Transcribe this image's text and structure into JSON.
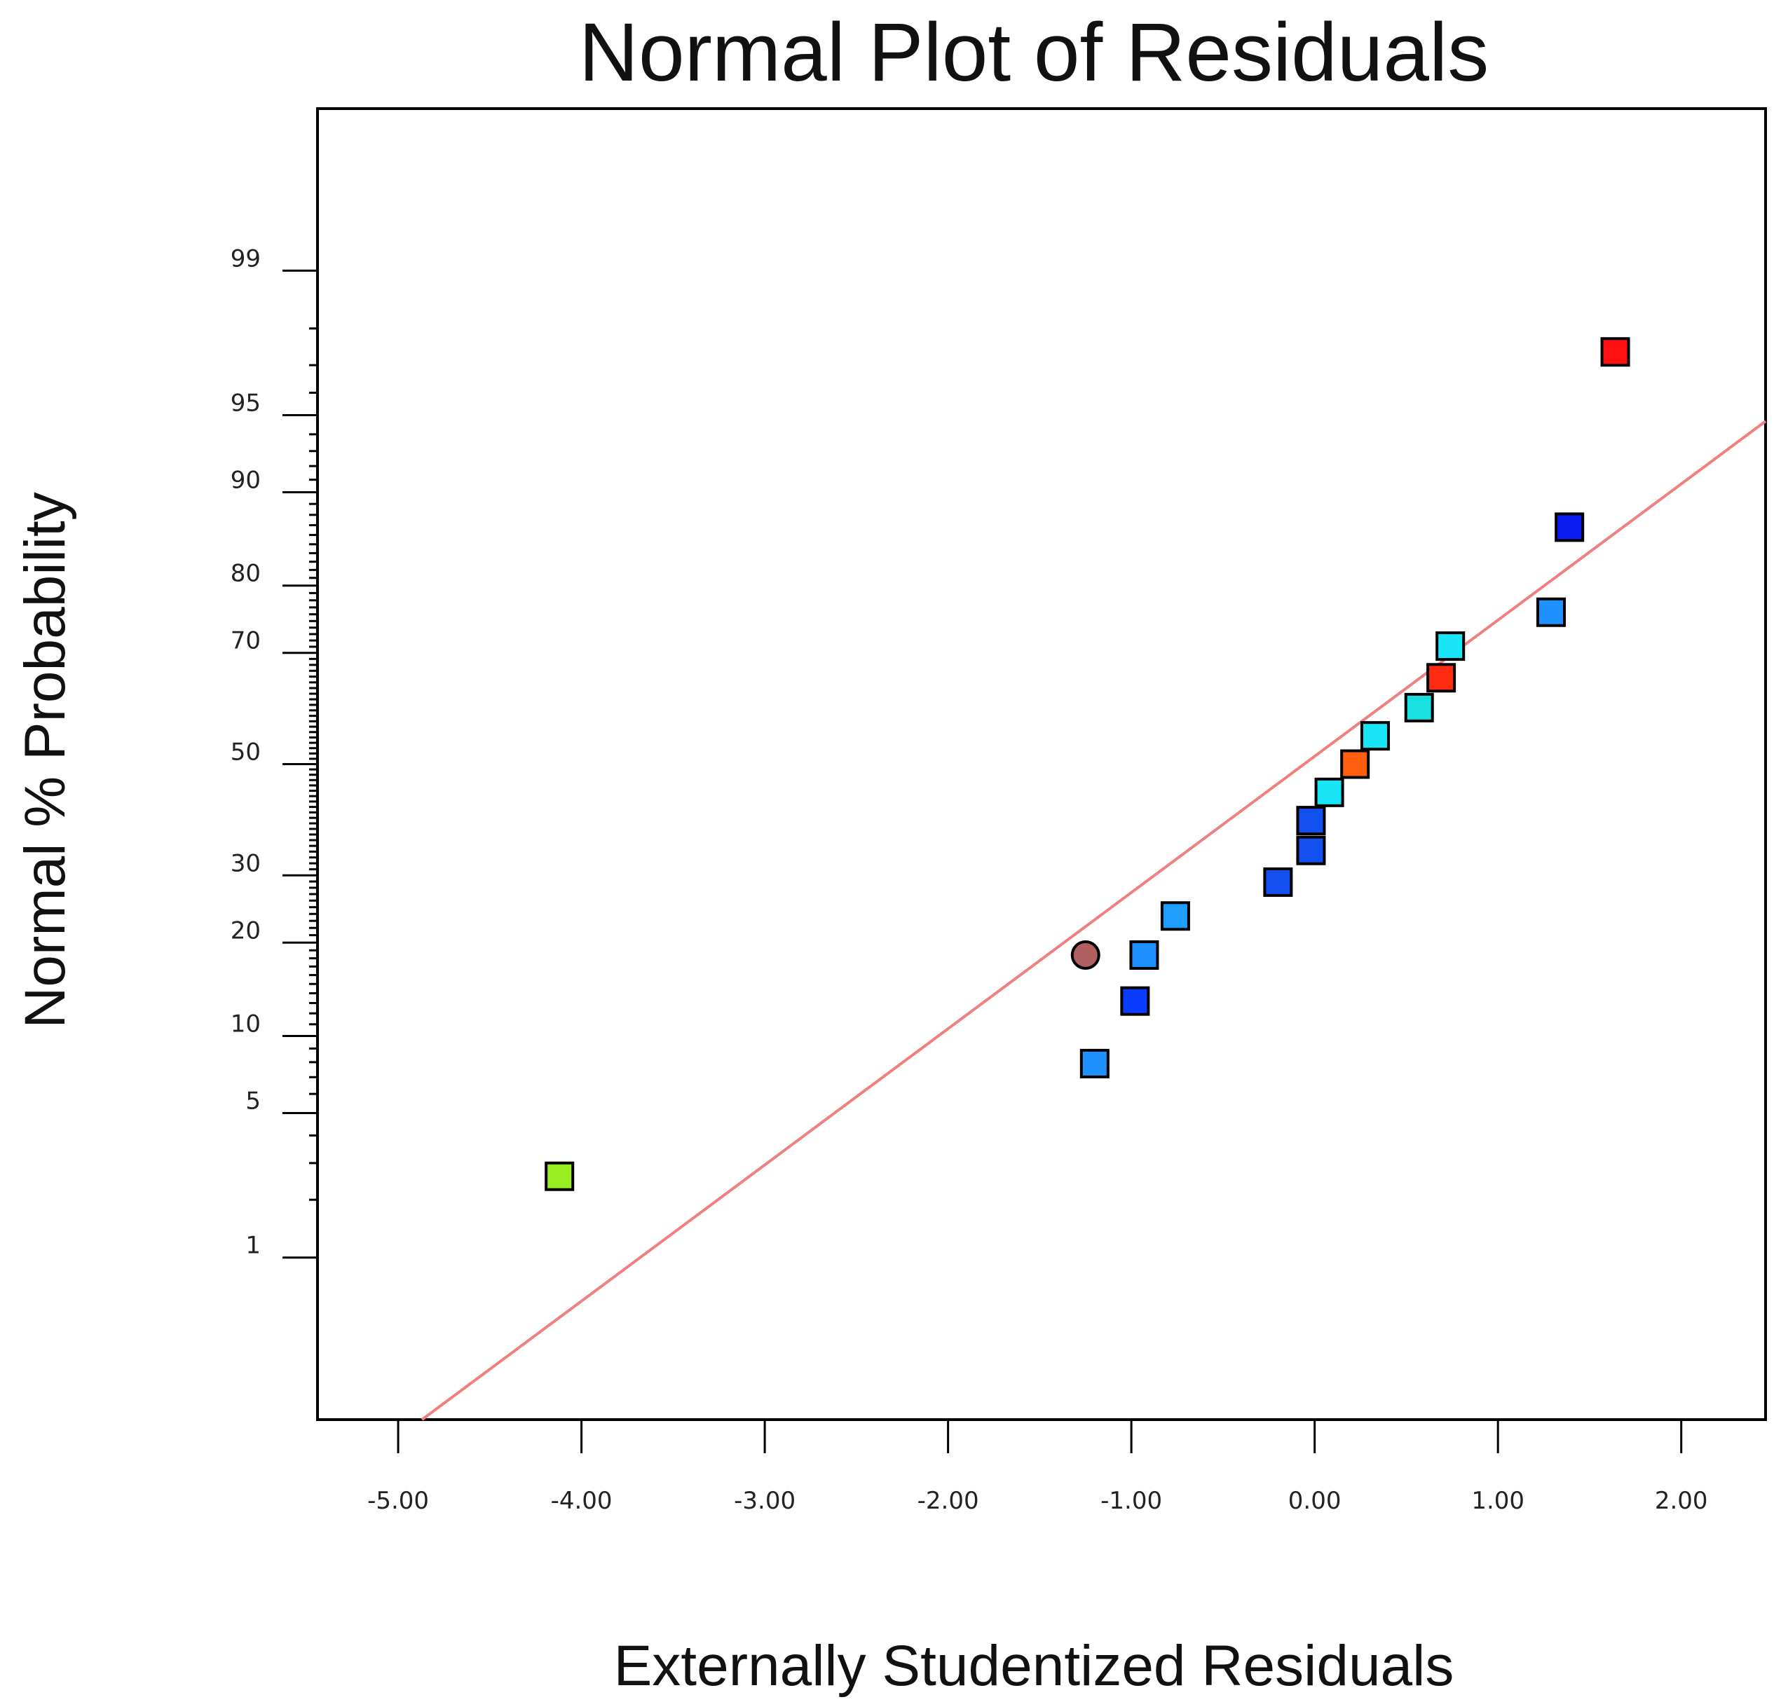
{
  "chart_data": {
    "type": "scatter",
    "title": "Normal Plot of Residuals",
    "xlabel": "Externally Studentized Residuals",
    "ylabel": "Normal % Probability",
    "xlim": [
      -5.44,
      2.46
    ],
    "ylim_probability": [
      0.1,
      99.9
    ],
    "xticks": [
      -5,
      -4,
      -3,
      -2,
      -1,
      0,
      1,
      2
    ],
    "xtick_labels": [
      "-5.00",
      "-4.00",
      "-3.00",
      "-2.00",
      "-1.00",
      "0.00",
      "1.00",
      "2.00"
    ],
    "yticks": [
      1,
      5,
      10,
      20,
      30,
      50,
      70,
      80,
      90,
      95,
      99
    ],
    "ytick_labels": [
      "1",
      "5",
      "10",
      "20",
      "30",
      "50",
      "70",
      "80",
      "90",
      "95",
      "99"
    ],
    "fit_line": {
      "x1": -4.87,
      "p1": 0.1,
      "x2": 2.46,
      "p2": 94.7,
      "color": "#f08080"
    },
    "points": [
      {
        "x": -4.12,
        "p": 2.6,
        "shape": "square",
        "color": "#99ee22"
      },
      {
        "x": -1.2,
        "p": 7.9,
        "shape": "square",
        "color": "#1e90ff"
      },
      {
        "x": -0.98,
        "p": 13.2,
        "shape": "square",
        "color": "#0a3cff"
      },
      {
        "x": -1.25,
        "p": 18.4,
        "shape": "circle",
        "color": "#b06060"
      },
      {
        "x": -0.93,
        "p": 18.4,
        "shape": "square",
        "color": "#1e90ff"
      },
      {
        "x": -0.76,
        "p": 23.7,
        "shape": "square",
        "color": "#1e9fff"
      },
      {
        "x": -0.2,
        "p": 28.9,
        "shape": "square",
        "color": "#1250f0"
      },
      {
        "x": -0.02,
        "p": 34.2,
        "shape": "square",
        "color": "#1250f0"
      },
      {
        "x": -0.02,
        "p": 39.5,
        "shape": "square",
        "color": "#1250f0"
      },
      {
        "x": 0.08,
        "p": 44.7,
        "shape": "square",
        "color": "#18e6f6"
      },
      {
        "x": 0.22,
        "p": 50.0,
        "shape": "square",
        "color": "#ff6010"
      },
      {
        "x": 0.33,
        "p": 55.3,
        "shape": "square",
        "color": "#18e6f6"
      },
      {
        "x": 0.57,
        "p": 60.5,
        "shape": "square",
        "color": "#18e0e0"
      },
      {
        "x": 0.69,
        "p": 65.8,
        "shape": "square",
        "color": "#ff2a10"
      },
      {
        "x": 0.74,
        "p": 71.1,
        "shape": "square",
        "color": "#18e6f6"
      },
      {
        "x": 1.29,
        "p": 76.3,
        "shape": "square",
        "color": "#1e90ff"
      },
      {
        "x": 1.39,
        "p": 86.8,
        "shape": "square",
        "color": "#0a1cf0"
      },
      {
        "x": 1.64,
        "p": 97.4,
        "shape": "square",
        "color": "#ff1010"
      }
    ]
  }
}
